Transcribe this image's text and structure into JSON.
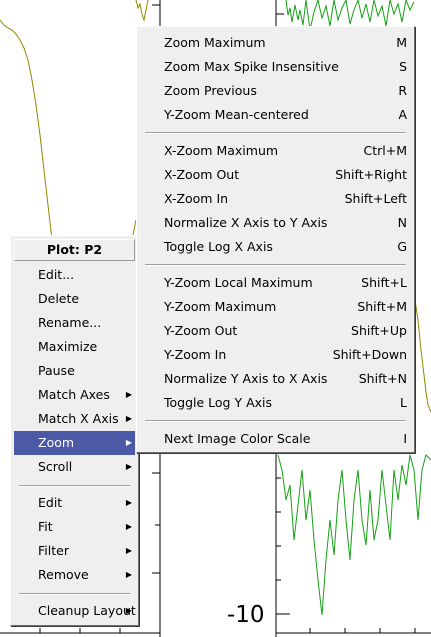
{
  "plot": {
    "axis_tick_label": "-10"
  },
  "context_menu": {
    "title": "Plot: P2",
    "items": [
      {
        "label": "Edit...",
        "submenu": false
      },
      {
        "label": "Delete",
        "submenu": false
      },
      {
        "label": "Rename...",
        "submenu": false
      },
      {
        "label": "Maximize",
        "submenu": false
      },
      {
        "label": "Pause",
        "submenu": false
      },
      {
        "label": "Match Axes",
        "submenu": true
      },
      {
        "label": "Match X Axis",
        "submenu": true
      },
      {
        "label": "Zoom",
        "submenu": true,
        "active": true
      },
      {
        "label": "Scroll",
        "submenu": true
      },
      {
        "label": "Edit",
        "submenu": true
      },
      {
        "label": "Fit",
        "submenu": true
      },
      {
        "label": "Filter",
        "submenu": true
      },
      {
        "label": "Remove",
        "submenu": true
      },
      {
        "label": "Cleanup Layout",
        "submenu": true
      }
    ],
    "highlight_color": "#4c59a6"
  },
  "zoom_submenu": {
    "items": [
      {
        "label": "Zoom Maximum",
        "shortcut": "M"
      },
      {
        "label": "Zoom Max Spike Insensitive",
        "shortcut": "S"
      },
      {
        "label": "Zoom Previous",
        "shortcut": "R"
      },
      {
        "label": "Y-Zoom Mean-centered",
        "shortcut": "A"
      },
      {
        "label": "X-Zoom Maximum",
        "shortcut": "Ctrl+M"
      },
      {
        "label": "X-Zoom Out",
        "shortcut": "Shift+Right"
      },
      {
        "label": "X-Zoom In",
        "shortcut": "Shift+Left"
      },
      {
        "label": "Normalize X Axis to Y Axis",
        "shortcut": "N"
      },
      {
        "label": "Toggle Log X Axis",
        "shortcut": "G"
      },
      {
        "label": "Y-Zoom Local Maximum",
        "shortcut": "Shift+L"
      },
      {
        "label": "Y-Zoom Maximum",
        "shortcut": "Shift+M"
      },
      {
        "label": "Y-Zoom Out",
        "shortcut": "Shift+Up"
      },
      {
        "label": "Y-Zoom In",
        "shortcut": "Shift+Down"
      },
      {
        "label": "Normalize Y Axis to X Axis",
        "shortcut": "Shift+N"
      },
      {
        "label": "Toggle Log Y Axis",
        "shortcut": "L"
      },
      {
        "label": "Next Image Color Scale",
        "shortcut": "I"
      }
    ]
  },
  "colors": {
    "left_curve": "#8f8a00",
    "right_curve": "#14a014"
  }
}
